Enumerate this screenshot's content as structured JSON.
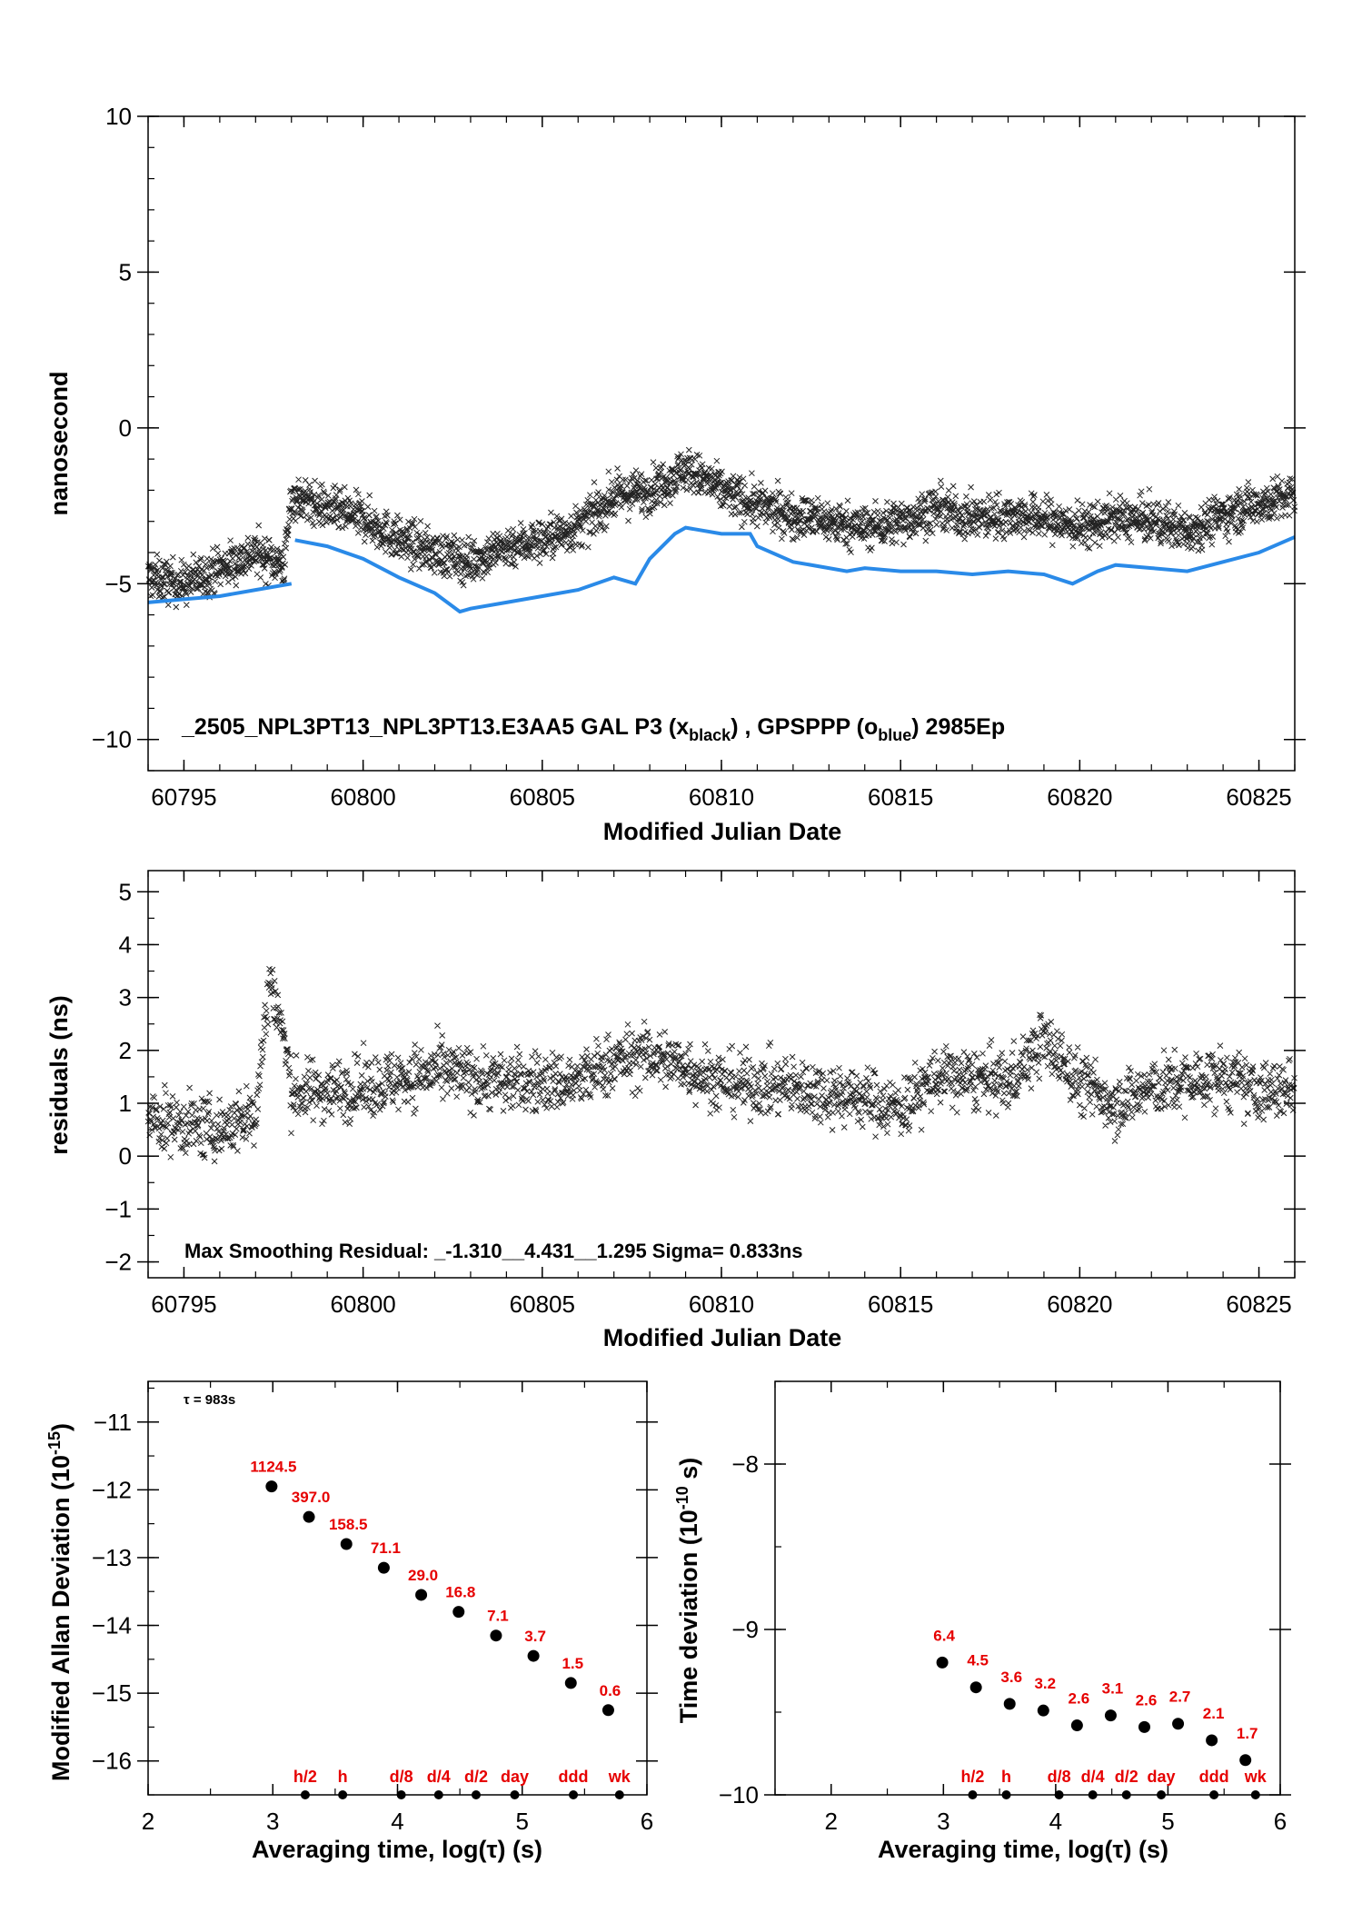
{
  "chart_data": [
    {
      "type": "scatter",
      "xlabel": "Modified Julian Date",
      "ylabel": "nanosecond",
      "xlim": [
        60794,
        60826
      ],
      "ylim": [
        -11,
        10
      ],
      "xticks": [
        60795,
        60800,
        60805,
        60810,
        60815,
        60820,
        60825
      ],
      "yticks": [
        -10,
        -5,
        0,
        5,
        10
      ],
      "annotation": {
        "prefix": "_2505_NPL3PT13_NPL3PT13.E3AA5     GAL P3 (x",
        "sub1": "black",
        "mid": ") ,  GPSPPP (o",
        "sub2": "blue",
        "suffix": ")  2985Ep"
      },
      "series": [
        {
          "marker": "x",
          "color": "#222222",
          "trend": [
            [
              60794,
              -4.8
            ],
            [
              60795,
              -5.0
            ],
            [
              60796,
              -4.5
            ],
            [
              60797,
              -4.0
            ],
            [
              60797.8,
              -4.4
            ],
            [
              60798,
              -2.2
            ],
            [
              60799,
              -2.6
            ],
            [
              60800,
              -2.9
            ],
            [
              60801,
              -3.6
            ],
            [
              60802,
              -4.0
            ],
            [
              60803,
              -4.3
            ],
            [
              60804,
              -3.8
            ],
            [
              60805,
              -3.6
            ],
            [
              60806,
              -3.2
            ],
            [
              60807,
              -2.2
            ],
            [
              60808,
              -2.0
            ],
            [
              60809,
              -1.3
            ],
            [
              60810,
              -2.0
            ],
            [
              60811,
              -2.5
            ],
            [
              60812,
              -2.8
            ],
            [
              60813,
              -3.0
            ],
            [
              60814,
              -3.2
            ],
            [
              60815,
              -3.0
            ],
            [
              60816,
              -2.6
            ],
            [
              60817,
              -2.9
            ],
            [
              60818,
              -2.8
            ],
            [
              60819,
              -2.9
            ],
            [
              60820,
              -3.2
            ],
            [
              60821,
              -2.9
            ],
            [
              60822,
              -3.0
            ],
            [
              60823,
              -3.3
            ],
            [
              60824,
              -2.8
            ],
            [
              60825,
              -2.4
            ],
            [
              60826,
              -2.2
            ]
          ],
          "spread": 0.9
        },
        {
          "marker": "o",
          "color": "#2a8ae8",
          "x": [
            60794,
            60795,
            60796,
            60797,
            60798,
            60798.1,
            60799,
            60800,
            60801,
            60802,
            60802.7,
            60803,
            60804,
            60805,
            60806,
            60807,
            60807.6,
            60808,
            60808.7,
            60809,
            60810,
            60810.8,
            60811,
            60812,
            60813,
            60813.5,
            60814,
            60815,
            60816,
            60817,
            60818,
            60819,
            60819.8,
            60820.5,
            60821,
            60822,
            60823,
            60824,
            60825,
            60826
          ],
          "y": [
            -5.6,
            -5.5,
            -5.4,
            -5.2,
            -5.0,
            -3.6,
            -3.8,
            -4.2,
            -4.8,
            -5.3,
            -5.9,
            -5.8,
            -5.6,
            -5.4,
            -5.2,
            -4.8,
            -5.0,
            -4.2,
            -3.4,
            -3.2,
            -3.4,
            -3.4,
            -3.8,
            -4.3,
            -4.5,
            -4.6,
            -4.5,
            -4.6,
            -4.6,
            -4.7,
            -4.6,
            -4.7,
            -5.0,
            -4.6,
            -4.4,
            -4.5,
            -4.6,
            -4.3,
            -4.0,
            -3.5
          ]
        }
      ]
    },
    {
      "type": "scatter",
      "xlabel": "Modified Julian Date",
      "ylabel": "residuals (ns)",
      "xlim": [
        60794,
        60826
      ],
      "ylim": [
        -2.3,
        5.4
      ],
      "xticks": [
        60795,
        60800,
        60805,
        60810,
        60815,
        60820,
        60825
      ],
      "yticks": [
        -2,
        -1,
        0,
        1,
        2,
        3,
        4,
        5
      ],
      "annotation": "Max Smoothing Residual: _-1.310__4.431__1.295  Sigma= 0.833ns",
      "series": [
        {
          "marker": "x",
          "color": "#222222",
          "trend": [
            [
              60794,
              0.7
            ],
            [
              60795,
              0.6
            ],
            [
              60796,
              0.5
            ],
            [
              60797,
              0.8
            ],
            [
              60797.4,
              3.4
            ],
            [
              60797.8,
              2.2
            ],
            [
              60798,
              1.2
            ],
            [
              60800,
              1.3
            ],
            [
              60802,
              1.6
            ],
            [
              60804,
              1.4
            ],
            [
              60806,
              1.4
            ],
            [
              60807,
              1.8
            ],
            [
              60808,
              1.9
            ],
            [
              60809,
              1.7
            ],
            [
              60810,
              1.4
            ],
            [
              60812,
              1.3
            ],
            [
              60814,
              1.1
            ],
            [
              60815,
              0.9
            ],
            [
              60816,
              1.5
            ],
            [
              60818,
              1.4
            ],
            [
              60819,
              2.2
            ],
            [
              60820,
              1.4
            ],
            [
              60821,
              1.0
            ],
            [
              60822,
              1.3
            ],
            [
              60824,
              1.5
            ],
            [
              60825,
              1.2
            ],
            [
              60826,
              1.3
            ]
          ],
          "spread": 0.75
        }
      ]
    },
    {
      "type": "scatter",
      "xlabel": "Averaging time, log(τ) (s)",
      "ylabel_main": "Modified Allan Deviation (10",
      "ylabel_sup": "-15",
      "ylabel_end": ")",
      "tau_note": "τ = 983s",
      "xlim": [
        2,
        6
      ],
      "ylim": [
        -16.5,
        -10.4
      ],
      "xticks": [
        2,
        3,
        4,
        5,
        6
      ],
      "yticks": [
        -16,
        -15,
        -14,
        -13,
        -12,
        -11
      ],
      "points": {
        "x": [
          2.99,
          3.29,
          3.59,
          3.89,
          4.19,
          4.49,
          4.79,
          5.09,
          5.39,
          5.69
        ],
        "y": [
          -11.95,
          -12.4,
          -12.8,
          -13.15,
          -13.55,
          -13.8,
          -14.15,
          -14.45,
          -14.85,
          -15.25
        ],
        "labels": [
          "1124.5",
          "397.0",
          "158.5",
          "71.1",
          "29.0",
          "16.8",
          "7.1",
          "3.7",
          "1.5",
          "0.6"
        ]
      },
      "markers": [
        {
          "x": 3.26,
          "label": "h/2"
        },
        {
          "x": 3.56,
          "label": "h"
        },
        {
          "x": 4.03,
          "label": "d/8"
        },
        {
          "x": 4.33,
          "label": "d/4"
        },
        {
          "x": 4.63,
          "label": "d/2"
        },
        {
          "x": 4.94,
          "label": "day"
        },
        {
          "x": 5.41,
          "label": "ddd"
        },
        {
          "x": 5.78,
          "label": "wk"
        }
      ]
    },
    {
      "type": "scatter",
      "xlabel": "Averaging time, log(τ) (s)",
      "ylabel_main": "Time deviation (10",
      "ylabel_sup": "-10",
      "ylabel_end": " s)",
      "xlim": [
        1.5,
        6
      ],
      "ylim": [
        -10,
        -7.5
      ],
      "xticks": [
        2,
        3,
        4,
        5,
        6
      ],
      "yticks": [
        -10,
        -9,
        -8
      ],
      "points": {
        "x": [
          2.99,
          3.29,
          3.59,
          3.89,
          4.19,
          4.49,
          4.79,
          5.09,
          5.39,
          5.69
        ],
        "y": [
          -9.2,
          -9.35,
          -9.45,
          -9.49,
          -9.58,
          -9.52,
          -9.59,
          -9.57,
          -9.67,
          -9.79
        ],
        "labels": [
          "6.4",
          "4.5",
          "3.6",
          "3.2",
          "2.6",
          "3.1",
          "2.6",
          "2.7",
          "2.1",
          "1.7"
        ]
      },
      "markers": [
        {
          "x": 3.26,
          "label": "h/2"
        },
        {
          "x": 3.56,
          "label": "h"
        },
        {
          "x": 4.03,
          "label": "d/8"
        },
        {
          "x": 4.33,
          "label": "d/4"
        },
        {
          "x": 4.63,
          "label": "d/2"
        },
        {
          "x": 4.94,
          "label": "day"
        },
        {
          "x": 5.41,
          "label": "ddd"
        },
        {
          "x": 5.78,
          "label": "wk"
        }
      ]
    }
  ],
  "colors": {
    "axis": "#000000",
    "label_red": "#e60000",
    "blue": "#2a8ae8",
    "black_points": "#222222"
  }
}
